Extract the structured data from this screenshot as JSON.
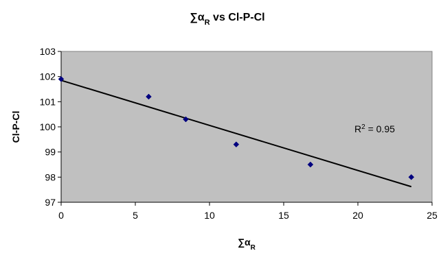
{
  "chart_data": {
    "type": "scatter",
    "title": "∑αR vs Cl-P-Cl",
    "title_main": "∑α",
    "title_sub": "R",
    "title_rest": " vs Cl-P-Cl",
    "xlabel_main": "∑α",
    "xlabel_sub": "R",
    "ylabel": "Cl-P-Cl",
    "xlim": [
      0,
      25
    ],
    "ylim": [
      97,
      103
    ],
    "x_ticks": [
      "0",
      "5",
      "10",
      "15",
      "20",
      "25"
    ],
    "y_ticks": [
      "97",
      "98",
      "99",
      "100",
      "101",
      "102",
      "103"
    ],
    "grid": false,
    "series": [
      {
        "points": [
          {
            "x": 0.0,
            "y": 101.9
          },
          {
            "x": 5.9,
            "y": 101.2
          },
          {
            "x": 8.4,
            "y": 100.3
          },
          {
            "x": 11.8,
            "y": 99.3
          },
          {
            "x": 16.8,
            "y": 98.5
          },
          {
            "x": 23.6,
            "y": 98.0
          }
        ],
        "marker_color": "#00007f"
      }
    ],
    "trendline": {
      "type": "linear",
      "x_start": 0.0,
      "y_start": 101.85,
      "x_end": 23.6,
      "y_end": 97.62,
      "color": "#000000"
    },
    "annotation": {
      "r_main": "R",
      "r_sup": "2",
      "r_rest": " = 0.95"
    },
    "plot_background": "#c0c0c0"
  }
}
